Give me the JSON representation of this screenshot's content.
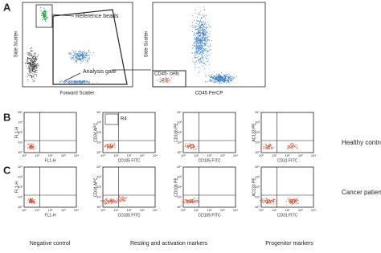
{
  "panel_labels": [
    "A",
    "B",
    "C"
  ],
  "panel_a": {
    "left": {
      "y_label": "Side Scatter",
      "x_label": "Forward Scatter",
      "beads_label": "Reference beads",
      "gate_label": "Analysis gate"
    },
    "right": {
      "y_label": "Side Scatter",
      "x_label": "CD45 PerCP",
      "gate_label": "CD45- cells"
    }
  },
  "tick_labels": [
    "10⁰",
    "10¹",
    "10²",
    "10³",
    "10⁴"
  ],
  "rows": [
    {
      "label": "Healthy control",
      "plots": [
        {
          "y_label": "FL1-H",
          "x_label": "FL1-H"
        },
        {
          "y_label": "CD34 APC",
          "x_label": "CD105 FITC",
          "region": "R4"
        },
        {
          "y_label": "CD106 PE",
          "x_label": "CD105 FITC"
        },
        {
          "y_label": "AC133 PE",
          "x_label": "CD31 FITC"
        }
      ]
    },
    {
      "label": "Cancer patient",
      "plots": [
        {
          "y_label": "FL1-H",
          "x_label": "FL1-H"
        },
        {
          "y_label": "CD34 APC",
          "x_label": "CD105 FITC"
        },
        {
          "y_label": "CD106 PE",
          "x_label": "CD105 FITC"
        },
        {
          "y_label": "AC133 PE",
          "x_label": "CD31 FITC"
        }
      ]
    }
  ],
  "columns": [
    "Negative control",
    "Resting and activation markers",
    "Progenitor markers"
  ]
}
